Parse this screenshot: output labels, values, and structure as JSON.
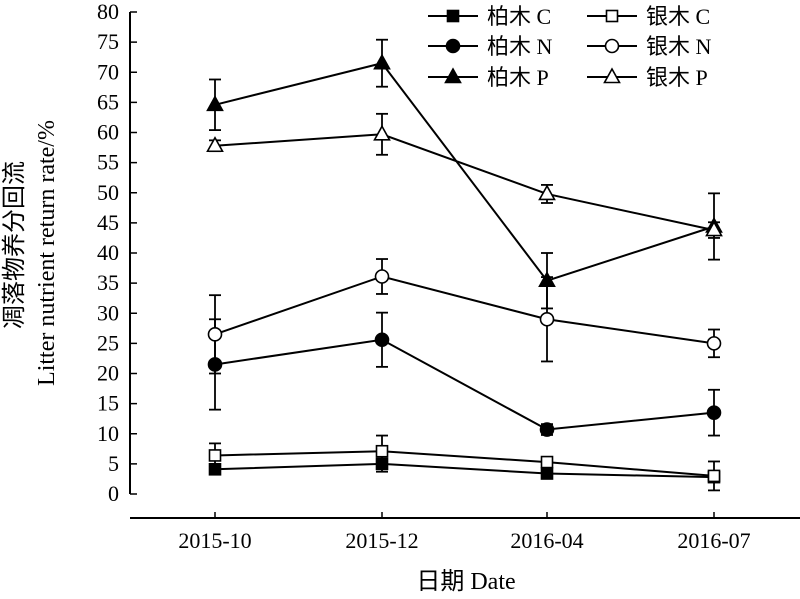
{
  "chart_data": {
    "type": "line",
    "title": "",
    "xlabel": "日期 Date",
    "ylabel_cn": "凋落物养分回流",
    "ylabel_en": "Litter nutrient return rate/%",
    "categories": [
      "2015-10",
      "2015-12",
      "2016-04",
      "2016-07"
    ],
    "ylim": [
      0,
      80
    ],
    "yticks": [
      0,
      5,
      10,
      15,
      20,
      25,
      30,
      35,
      40,
      45,
      50,
      55,
      60,
      65,
      70,
      75,
      80
    ],
    "grid": false,
    "legend_position": "top-right",
    "series": [
      {
        "name": "柏木 C",
        "marker": "square",
        "filled": true,
        "values": [
          4.1,
          5.0,
          3.4,
          2.8
        ],
        "errors": [
          0.5,
          1.3,
          0.4,
          0.8
        ]
      },
      {
        "name": "银木 C",
        "marker": "square",
        "filled": false,
        "values": [
          6.4,
          7.1,
          5.3,
          3.0
        ],
        "errors": [
          2.0,
          2.6,
          0.6,
          2.4
        ]
      },
      {
        "name": "柏木 N",
        "marker": "circle",
        "filled": true,
        "values": [
          21.5,
          25.6,
          10.7,
          13.5
        ],
        "errors": [
          7.5,
          4.5,
          0.9,
          3.8
        ]
      },
      {
        "name": "银木 N",
        "marker": "circle",
        "filled": false,
        "values": [
          26.5,
          36.1,
          29.0,
          25.0
        ],
        "errors": [
          6.5,
          2.9,
          7.0,
          2.3
        ]
      },
      {
        "name": "柏木 P",
        "marker": "triangle",
        "filled": true,
        "values": [
          64.6,
          71.5,
          35.4,
          44.4
        ],
        "errors": [
          4.2,
          3.9,
          4.6,
          5.5
        ]
      },
      {
        "name": "银木 P",
        "marker": "triangle",
        "filled": false,
        "values": [
          57.8,
          59.7,
          49.8,
          43.8
        ],
        "errors": [
          0.9,
          3.4,
          1.5,
          1.3
        ]
      }
    ]
  }
}
